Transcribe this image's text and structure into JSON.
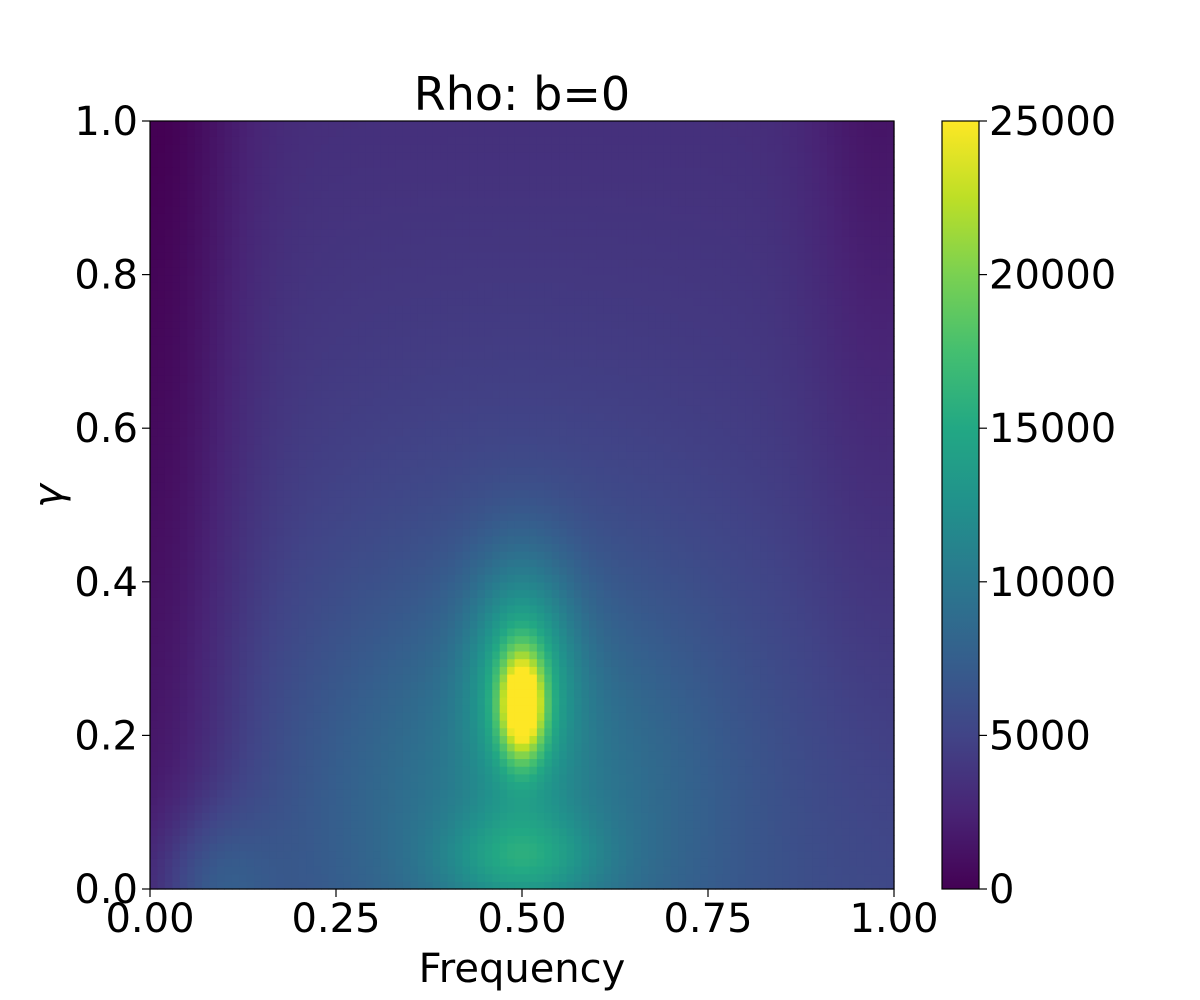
{
  "chart_data": {
    "type": "heatmap",
    "title": "Rho: b=0",
    "xlabel": "Frequency",
    "ylabel": "γ",
    "xlim": [
      0,
      1
    ],
    "ylim": [
      0,
      1
    ],
    "x_ticks": [
      0,
      0.25,
      0.5,
      0.75,
      1.0
    ],
    "x_tick_labels": [
      "0.00",
      "0.25",
      "0.50",
      "0.75",
      "1.00"
    ],
    "y_ticks": [
      0,
      0.2,
      0.4,
      0.6,
      0.8,
      1.0
    ],
    "y_tick_labels": [
      "0.0",
      "0.2",
      "0.4",
      "0.6",
      "0.8",
      "1.0"
    ],
    "colorbar": {
      "colormap": "viridis",
      "range": [
        0,
        25000
      ],
      "ticks": [
        0,
        5000,
        10000,
        15000,
        20000,
        25000
      ],
      "tick_labels": [
        "0",
        "5000",
        "10000",
        "15000",
        "20000",
        "25000"
      ]
    },
    "peak": {
      "x": 0.5,
      "y": 0.24,
      "value": 25000
    },
    "grid": false
  }
}
